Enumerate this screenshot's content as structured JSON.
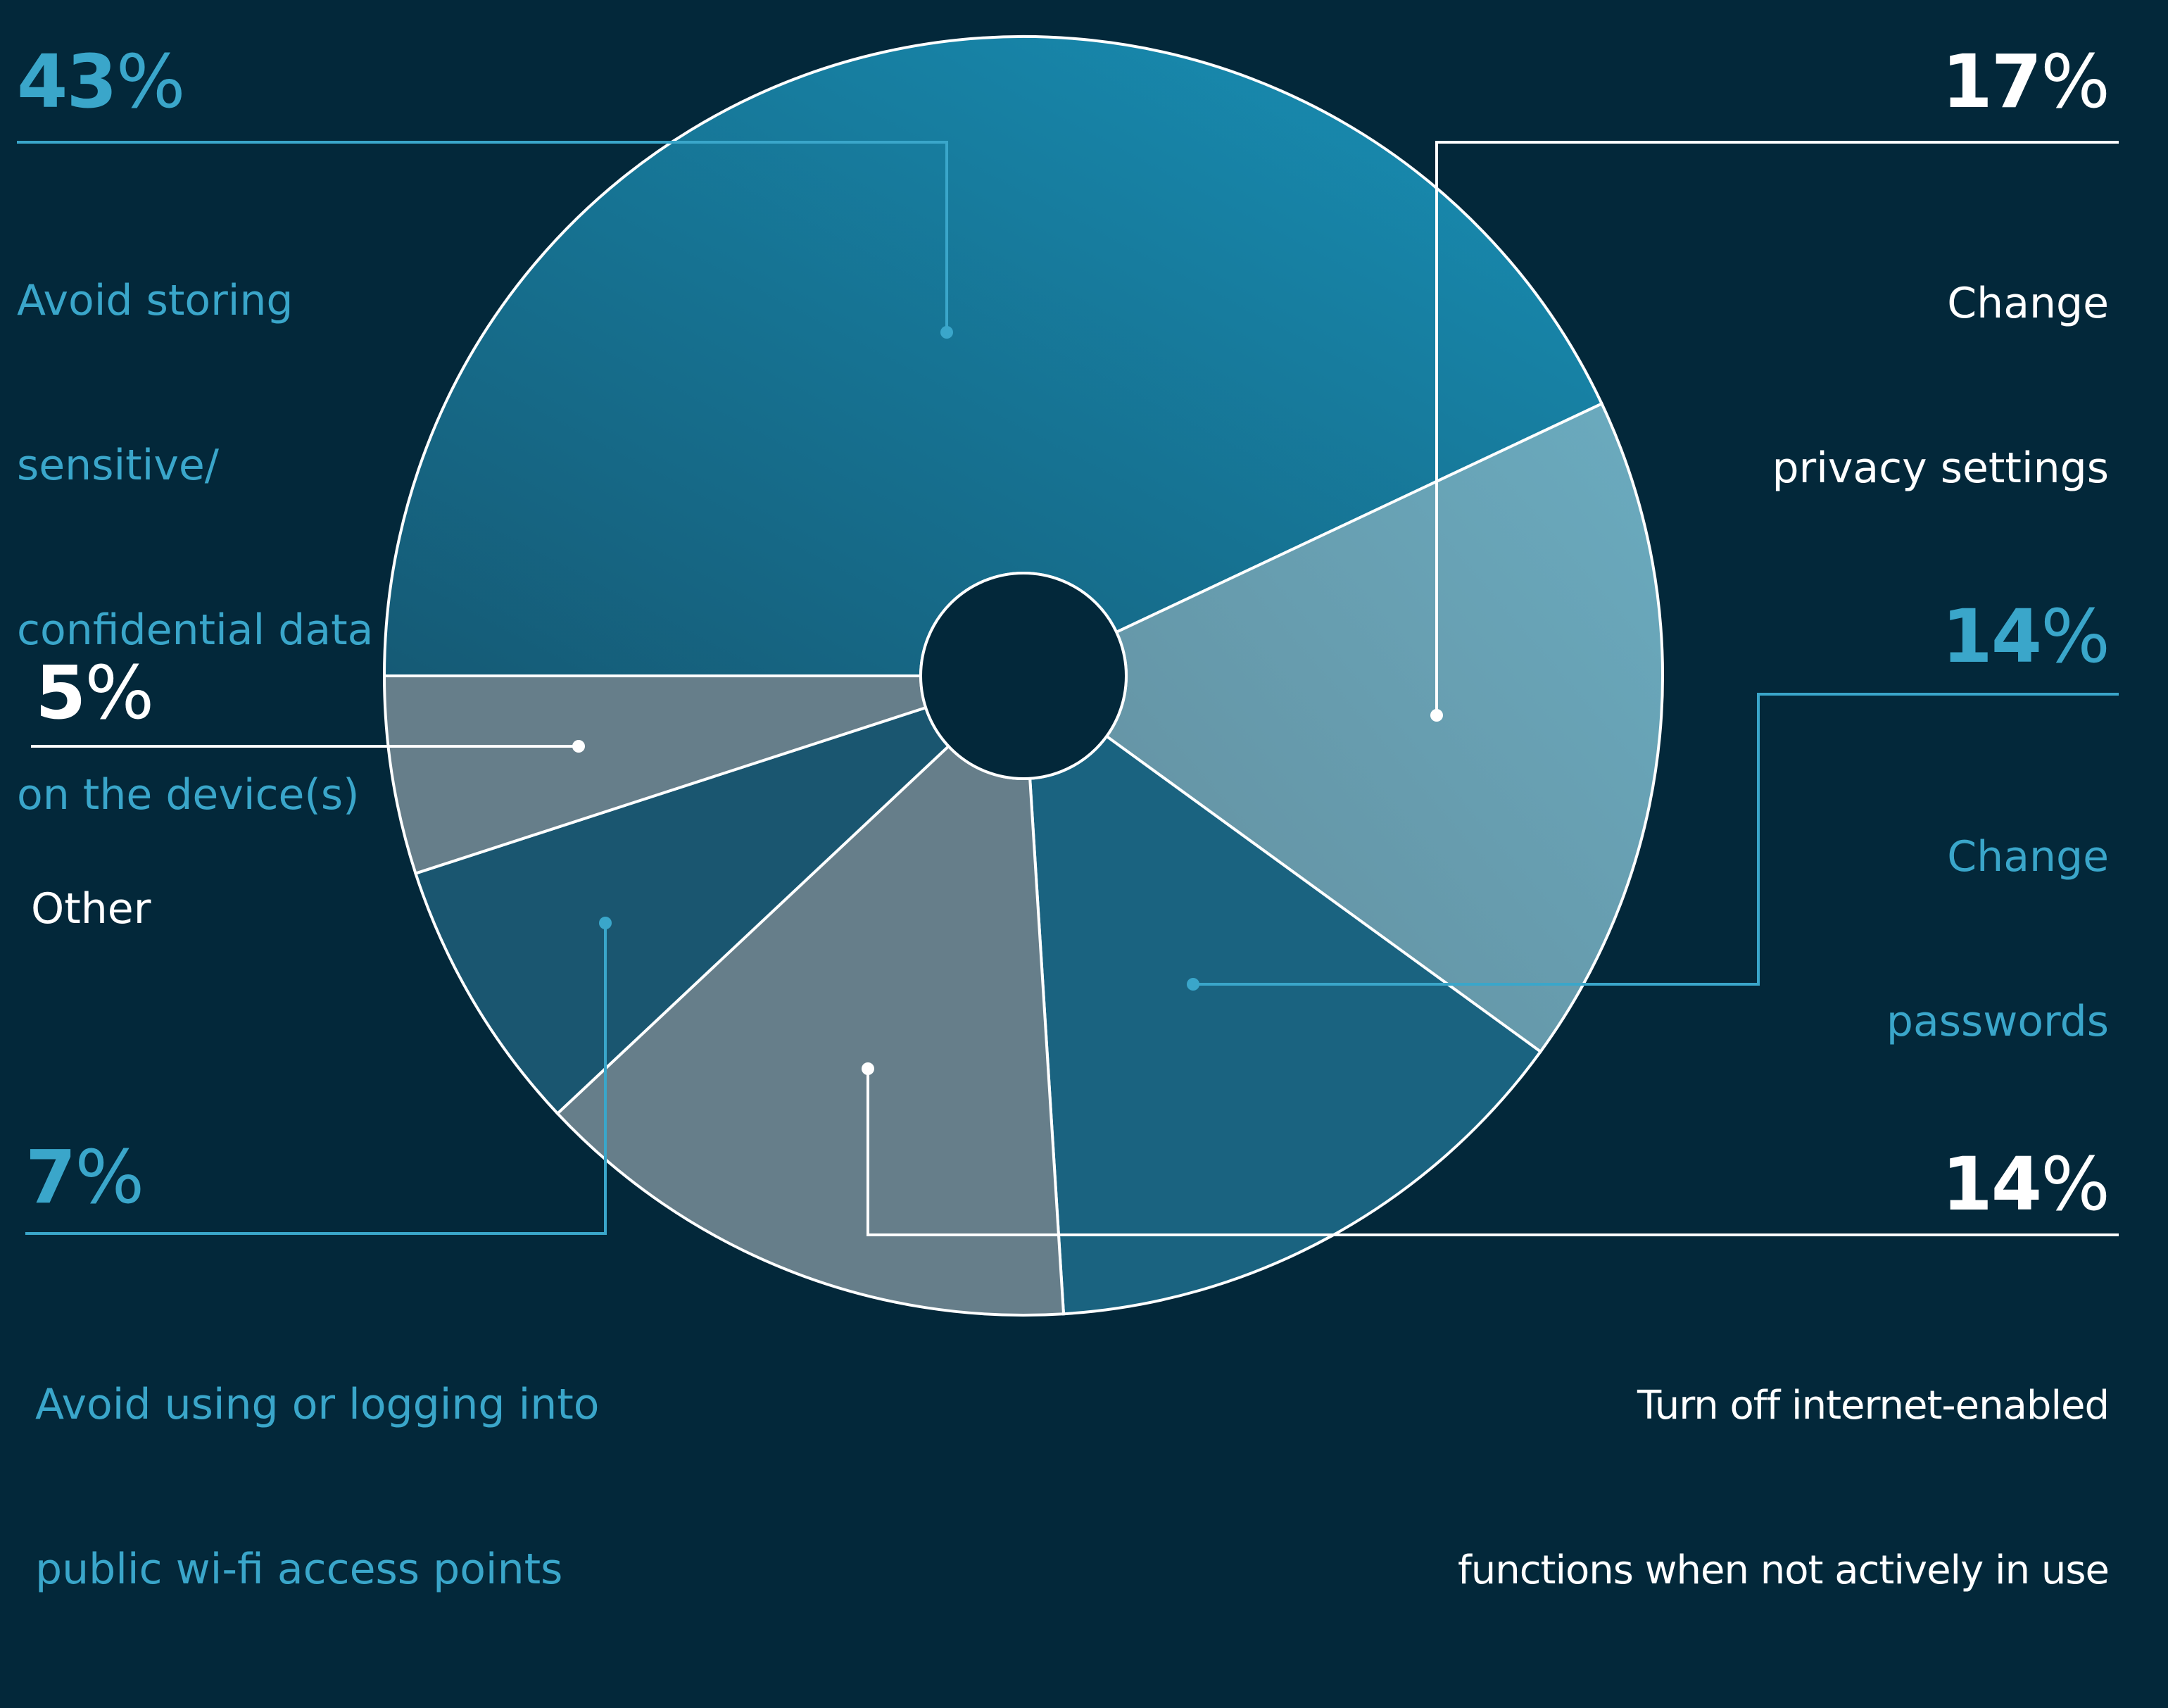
{
  "chart_data": {
    "type": "pie",
    "style": "donut",
    "slices": [
      {
        "label": "Avoid storing sensitive/ confidential data on the device(s)",
        "value": 43,
        "display": "43%",
        "label_color": "#3aa6ca",
        "fill": "#17718f"
      },
      {
        "label": "Change privacy settings",
        "value": 17,
        "display": "17%",
        "label_color": "#ffffff",
        "fill": "#669aab"
      },
      {
        "label": "Change passwords",
        "value": 14,
        "display": "14%",
        "label_color": "#3aa6ca",
        "fill": "#1a6380"
      },
      {
        "label": "Turn off internet-enabled functions when not actively in use",
        "value": 14,
        "display": "14%",
        "label_color": "#ffffff",
        "fill": "#667e8a"
      },
      {
        "label": "Avoid using or logging into public wi-fi access points",
        "value": 7,
        "display": "7%",
        "label_color": "#3aa6ca",
        "fill": "#1a5670"
      },
      {
        "label": "Other",
        "value": 5,
        "display": "5%",
        "label_color": "#ffffff",
        "fill": "#667e8a"
      }
    ]
  },
  "labels": {
    "s43": {
      "num": "43",
      "lines": [
        "Avoid storing",
        "sensitive/",
        "confidential data",
        "on the device(s)"
      ]
    },
    "s17": {
      "num": "17",
      "lines": [
        "Change",
        "privacy settings"
      ]
    },
    "s14a": {
      "num": "14",
      "lines": [
        "Change",
        "passwords"
      ]
    },
    "s14b": {
      "num": "14",
      "lines": [
        "Turn off internet-enabled",
        "functions when not actively in use"
      ]
    },
    "s7": {
      "num": "7",
      "lines": [
        "Avoid using or logging into",
        "public wi-fi access points"
      ]
    },
    "s5": {
      "num": "5",
      "lines": [
        "Other"
      ]
    },
    "percent_sign": "%"
  },
  "colors": {
    "background": "#03283a",
    "accent_blue": "#3aa6ca",
    "white": "#ffffff"
  }
}
